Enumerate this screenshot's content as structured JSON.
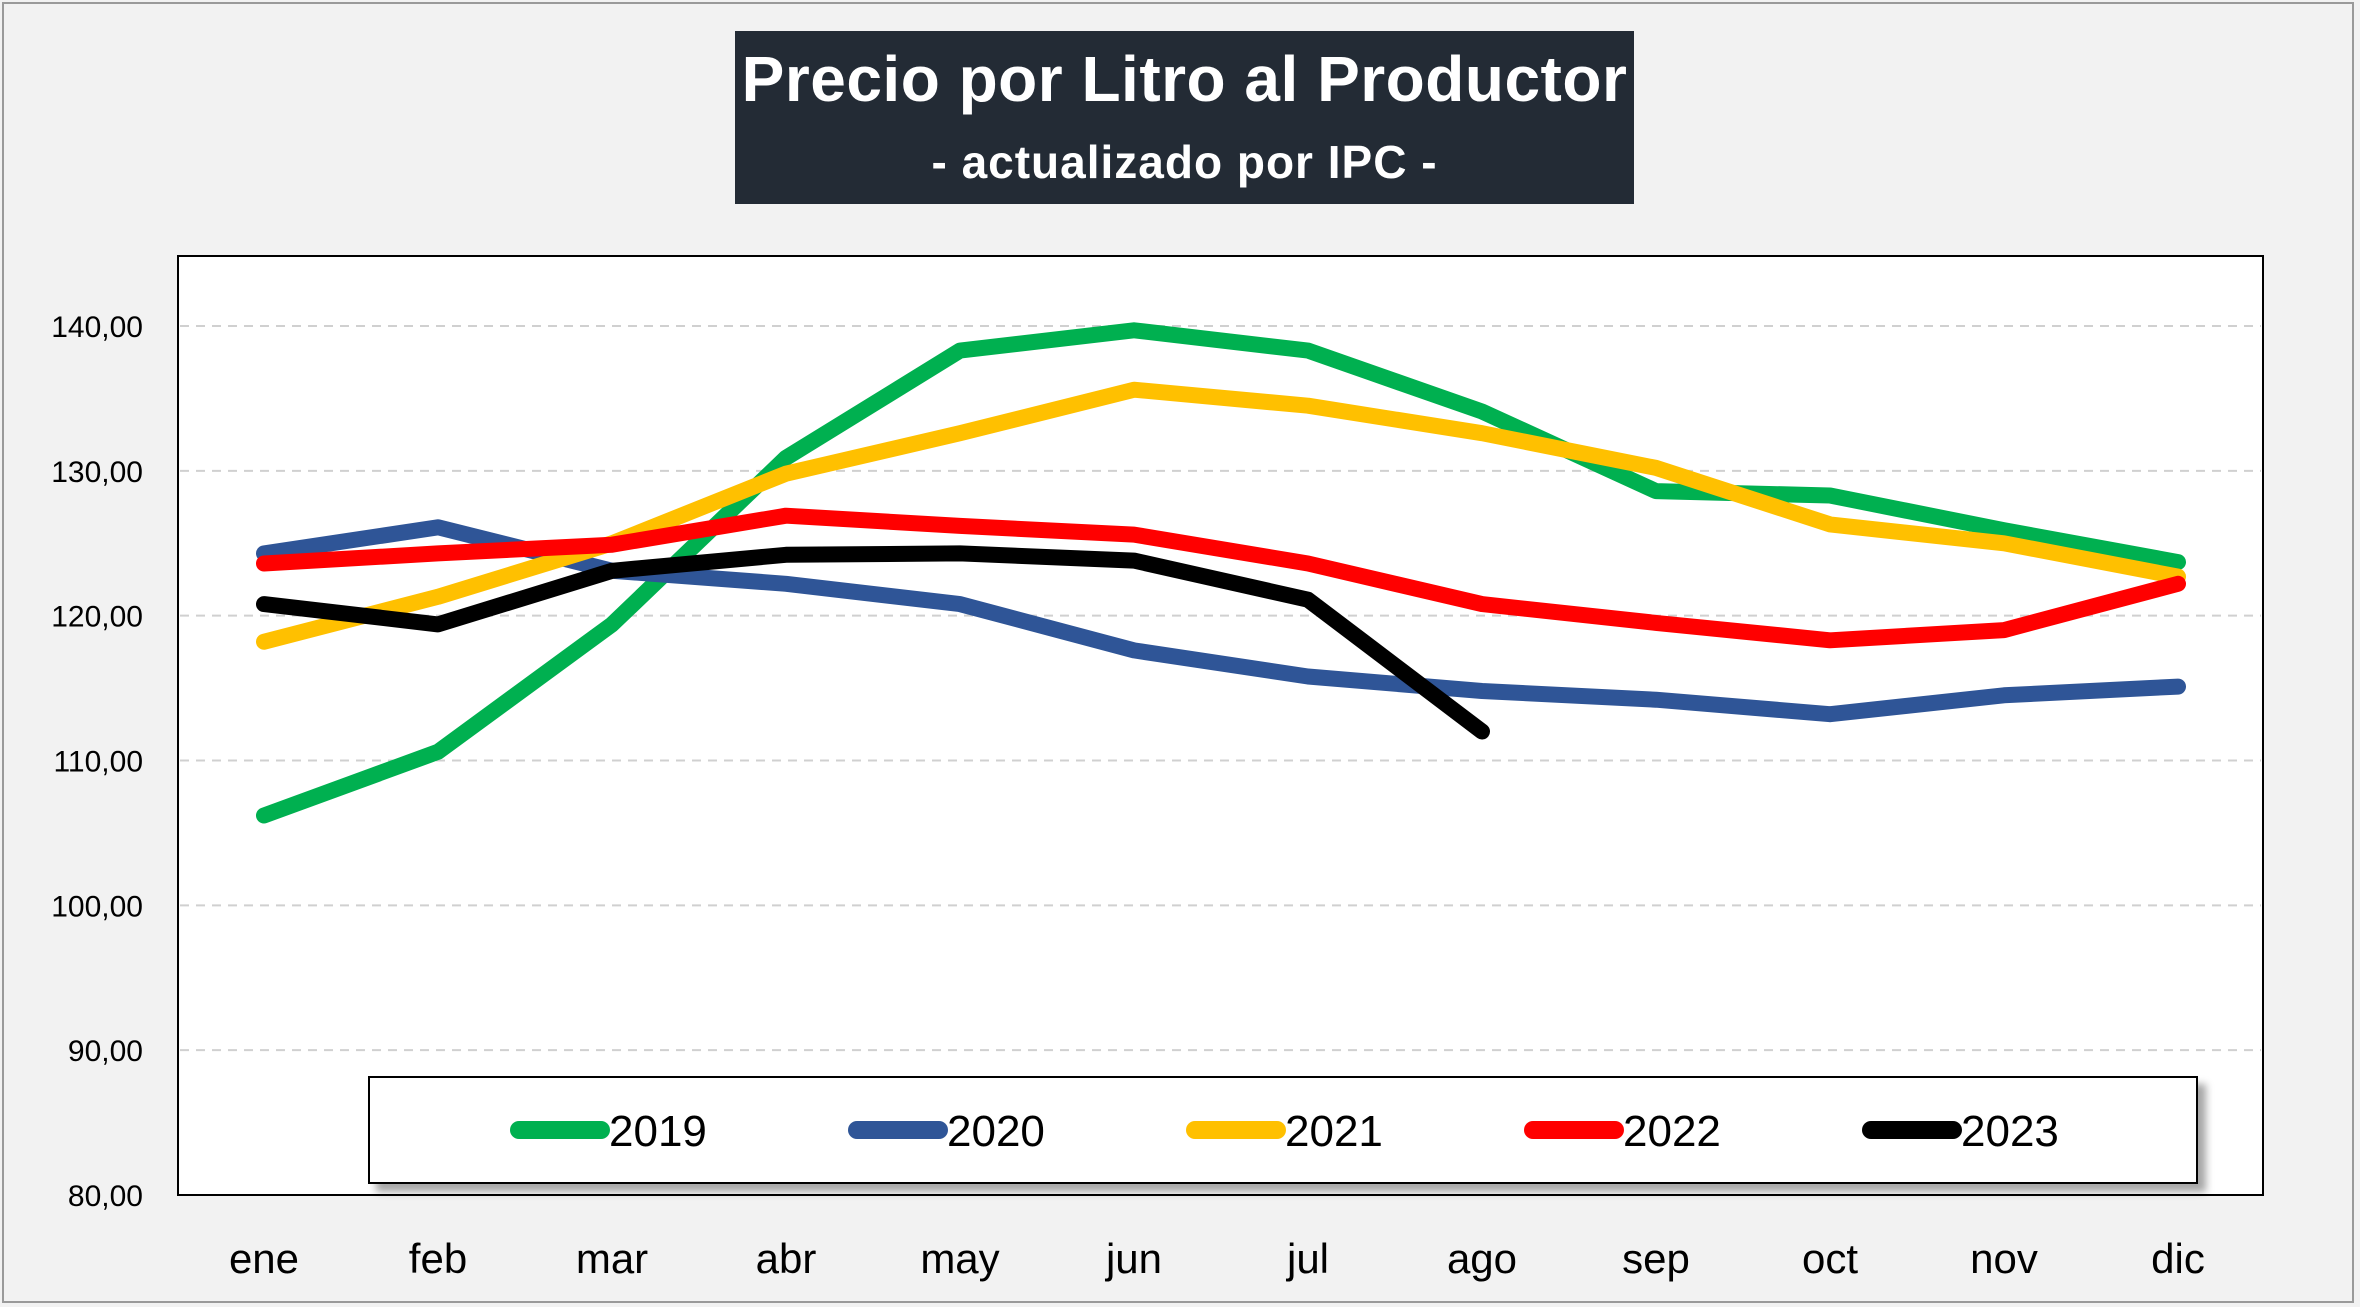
{
  "chart_data": {
    "type": "line",
    "title": "Precio por Litro al Productor",
    "subtitle": "- actualizado por IPC -",
    "xlabel": "",
    "ylabel": "",
    "categories": [
      "ene",
      "feb",
      "mar",
      "abr",
      "may",
      "jun",
      "jul",
      "ago",
      "sep",
      "oct",
      "nov",
      "dic"
    ],
    "ylim": [
      80,
      140
    ],
    "yticks": [
      "80,00",
      "90,00",
      "100,00",
      "110,00",
      "120,00",
      "130,00",
      "140,00"
    ],
    "ytick_values": [
      80,
      90,
      100,
      110,
      120,
      130,
      140
    ],
    "grid": "horizontal dashed",
    "legend": "bottom",
    "series": [
      {
        "name": "2019",
        "color": "#00b050",
        "values": [
          106.2,
          110.6,
          119.4,
          130.9,
          138.3,
          139.7,
          138.3,
          134.1,
          128.6,
          128.3,
          125.9,
          123.7
        ]
      },
      {
        "name": "2020",
        "color": "#2f5597",
        "values": [
          124.3,
          126.1,
          123.1,
          122.2,
          120.8,
          117.6,
          115.8,
          114.8,
          114.2,
          113.2,
          114.5,
          115.1
        ]
      },
      {
        "name": "2021",
        "color": "#ffc000",
        "values": [
          118.2,
          121.3,
          125.0,
          129.8,
          132.6,
          135.6,
          134.5,
          132.6,
          130.2,
          126.3,
          125.0,
          122.7
        ]
      },
      {
        "name": "2022",
        "color": "#ff0000",
        "values": [
          123.6,
          124.3,
          124.9,
          126.9,
          126.2,
          125.6,
          123.6,
          120.8,
          119.5,
          118.3,
          119.0,
          122.2
        ]
      },
      {
        "name": "2023",
        "color": "#000000",
        "values": [
          120.8,
          119.4,
          123.1,
          124.2,
          124.3,
          123.8,
          121.1,
          112.0,
          null,
          null,
          null,
          null
        ]
      }
    ]
  }
}
